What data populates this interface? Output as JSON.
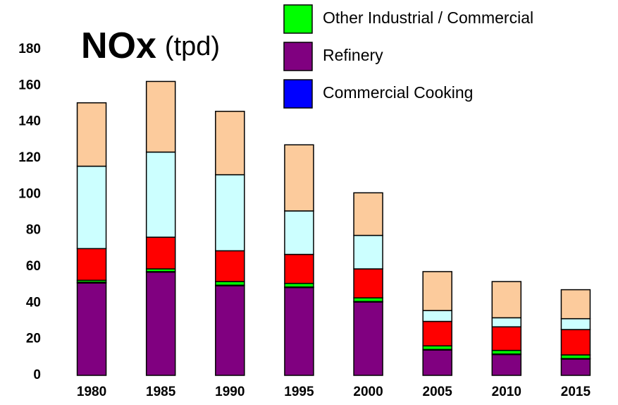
{
  "chart_data": {
    "type": "stacked-bar",
    "title": "NOx",
    "unit": "(tpd)",
    "categories": [
      "1980",
      "1985",
      "1990",
      "1995",
      "2000",
      "2005",
      "2010",
      "2015"
    ],
    "series": [
      {
        "name": "Other Industrial / Commercial",
        "color": "#00ff00",
        "values": [
          1,
          1.5,
          2,
          2,
          2,
          2,
          2,
          2
        ]
      },
      {
        "name": "Refinery",
        "color": "#800080",
        "values": [
          51,
          57,
          49.5,
          48.5,
          40.5,
          14,
          11.5,
          9
        ]
      },
      {
        "name": "Commercial Cooking",
        "color": "#0000ff",
        "values": [
          0.5,
          0.3,
          0.3,
          0.3,
          0.3,
          0.3,
          0.3,
          0.3
        ]
      },
      {
        "color": "#ff0000",
        "values": [
          17.5,
          17.5,
          17,
          16,
          16,
          13.5,
          13,
          14
        ]
      },
      {
        "color": "#ccffff",
        "values": [
          45.5,
          47,
          42,
          24,
          18.5,
          6,
          5,
          6
        ]
      },
      {
        "color": "#fccb9c",
        "values": [
          35,
          39,
          35,
          36.5,
          23.5,
          21.5,
          20,
          16
        ]
      }
    ],
    "ylim": [
      0,
      180
    ],
    "yticks": [
      0,
      20,
      40,
      60,
      80,
      100,
      120,
      140,
      160,
      180
    ],
    "grid": false
  }
}
